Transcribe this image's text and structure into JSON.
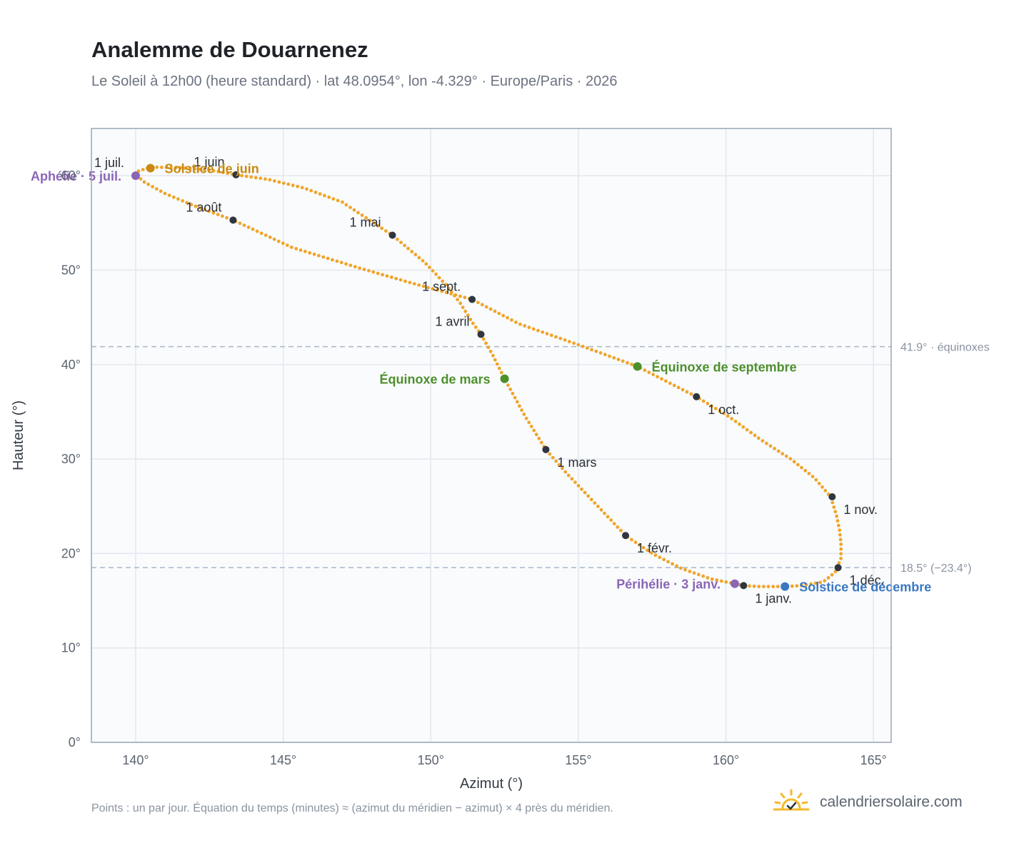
{
  "page": {
    "title": "Analemme de Douarnenez",
    "subtitle": "Le Soleil à 12h00 (heure standard) · lat 48.0954°, lon -4.329° · Europe/Paris · 2026",
    "footnote": "Points : un par jour. Équation du temps (minutes) ≈ (azimut du méridien − azimut) × 4 près du méridien.",
    "brand": "calendriersolaire.com"
  },
  "colors": {
    "curve": "#f0a52a",
    "month_marker": "#2f3640",
    "equinox": "#4e8f2c",
    "solstice_june": "#c98a12",
    "solstice_december": "#3a78c2",
    "apsis": "#8a66b5",
    "reference_line": "#a9b7c6",
    "plot_background": "#f9fbfd",
    "grid": "#e3e8ee",
    "frame": "#9aa6b4"
  },
  "chart_data": {
    "type": "scatter",
    "xlabel": "Azimut (°)",
    "ylabel": "Hauteur (°)",
    "xlim": [
      138.5,
      165.6
    ],
    "ylim": [
      0,
      65
    ],
    "x_ticks": [
      {
        "value": 140,
        "label": "140°"
      },
      {
        "value": 145,
        "label": "145°"
      },
      {
        "value": 150,
        "label": "150°"
      },
      {
        "value": 155,
        "label": "155°"
      },
      {
        "value": 160,
        "label": "160°"
      },
      {
        "value": 165,
        "label": "165°"
      }
    ],
    "y_ticks": [
      {
        "value": 0,
        "label": "0°"
      },
      {
        "value": 10,
        "label": "10°"
      },
      {
        "value": 20,
        "label": "20°"
      },
      {
        "value": 30,
        "label": "30°"
      },
      {
        "value": 40,
        "label": "40°"
      },
      {
        "value": 50,
        "label": "50°"
      },
      {
        "value": 60,
        "label": "60°"
      }
    ],
    "grid": true,
    "path": [
      [
        161.6,
        16.5
      ],
      [
        162.0,
        16.5
      ],
      [
        162.6,
        16.6
      ],
      [
        163.3,
        17.0
      ],
      [
        163.7,
        18.0
      ],
      [
        163.9,
        19.5
      ],
      [
        163.9,
        21.0
      ],
      [
        163.85,
        22.5
      ],
      [
        163.75,
        24.0
      ],
      [
        163.55,
        26.0
      ],
      [
        163.0,
        28.0
      ],
      [
        162.2,
        30.0
      ],
      [
        161.2,
        32.0
      ],
      [
        160.1,
        34.5
      ],
      [
        159.0,
        36.6
      ],
      [
        157.0,
        39.8
      ],
      [
        155.0,
        42.1
      ],
      [
        153.0,
        44.3
      ],
      [
        151.4,
        46.9
      ],
      [
        149.5,
        48.5
      ],
      [
        147.5,
        50.3
      ],
      [
        145.3,
        52.4
      ],
      [
        143.3,
        55.3
      ],
      [
        142.0,
        56.8
      ],
      [
        141.0,
        58.1
      ],
      [
        140.3,
        59.3
      ],
      [
        140.05,
        60.0
      ],
      [
        140.1,
        60.5
      ],
      [
        140.4,
        60.8
      ],
      [
        140.7,
        60.9
      ],
      [
        141.5,
        60.85
      ],
      [
        142.5,
        60.6
      ],
      [
        143.4,
        60.1
      ],
      [
        144.5,
        59.6
      ],
      [
        145.7,
        58.7
      ],
      [
        147.0,
        57.2
      ],
      [
        148.7,
        53.7
      ],
      [
        149.8,
        50.8
      ],
      [
        150.5,
        48.5
      ],
      [
        151.0,
        46.5
      ],
      [
        151.4,
        44.5
      ],
      [
        151.7,
        43.2
      ],
      [
        152.1,
        41.0
      ],
      [
        152.5,
        38.5
      ],
      [
        153.2,
        34.5
      ],
      [
        153.9,
        31.0
      ],
      [
        154.6,
        28.5
      ],
      [
        155.6,
        25.2
      ],
      [
        156.6,
        21.9
      ],
      [
        157.5,
        20.0
      ],
      [
        158.5,
        18.4
      ],
      [
        159.5,
        17.3
      ],
      [
        160.3,
        16.8
      ],
      [
        160.6,
        16.6
      ],
      [
        161.1,
        16.5
      ],
      [
        161.6,
        16.5
      ]
    ],
    "month_markers": [
      {
        "label": "1 janv.",
        "az": 160.6,
        "alt": 16.6,
        "pos": "below-right"
      },
      {
        "label": "1 févr.",
        "az": 156.6,
        "alt": 21.9,
        "pos": "below-right"
      },
      {
        "label": "1 mars",
        "az": 153.9,
        "alt": 31.0,
        "pos": "below-right"
      },
      {
        "label": "1 avril",
        "az": 151.7,
        "alt": 43.2,
        "pos": "above-left"
      },
      {
        "label": "1 mai",
        "az": 148.7,
        "alt": 53.7,
        "pos": "above-left"
      },
      {
        "label": "1 juin",
        "az": 143.4,
        "alt": 60.1,
        "pos": "above-left"
      },
      {
        "label": "1 juil.",
        "az": 140.0,
        "alt": 60.0,
        "pos": "above-left"
      },
      {
        "label": "1 août",
        "az": 143.3,
        "alt": 55.3,
        "pos": "above-left"
      },
      {
        "label": "1 sept.",
        "az": 151.4,
        "alt": 46.9,
        "pos": "above-left"
      },
      {
        "label": "1 oct.",
        "az": 159.0,
        "alt": 36.6,
        "pos": "below-right"
      },
      {
        "label": "1 nov.",
        "az": 163.6,
        "alt": 26.0,
        "pos": "below-right"
      },
      {
        "label": "1 déc.",
        "az": 163.8,
        "alt": 18.5,
        "pos": "below-right"
      }
    ],
    "events": [
      {
        "label": "Solstice de juin",
        "az": 140.5,
        "alt": 60.8,
        "kind": "solstice_june",
        "side": "right"
      },
      {
        "label": "Aphélie · 5 juil.",
        "az": 140.0,
        "alt": 60.0,
        "kind": "apsis",
        "side": "left"
      },
      {
        "label": "Équinoxe de mars",
        "az": 152.5,
        "alt": 38.5,
        "kind": "equinox",
        "side": "left"
      },
      {
        "label": "Équinoxe de septembre",
        "az": 157.0,
        "alt": 39.8,
        "kind": "equinox",
        "side": "right"
      },
      {
        "label": "Périhélie · 3 janv.",
        "az": 160.3,
        "alt": 16.8,
        "kind": "apsis",
        "side": "left"
      },
      {
        "label": "Solstice de décembre",
        "az": 162.0,
        "alt": 16.5,
        "kind": "solstice_december",
        "side": "right"
      }
    ],
    "reference_lines": [
      {
        "value": 41.9,
        "label": "41.9° · équinoxes"
      },
      {
        "value": 18.5,
        "label": "18.5° (−23.4°)"
      }
    ]
  }
}
